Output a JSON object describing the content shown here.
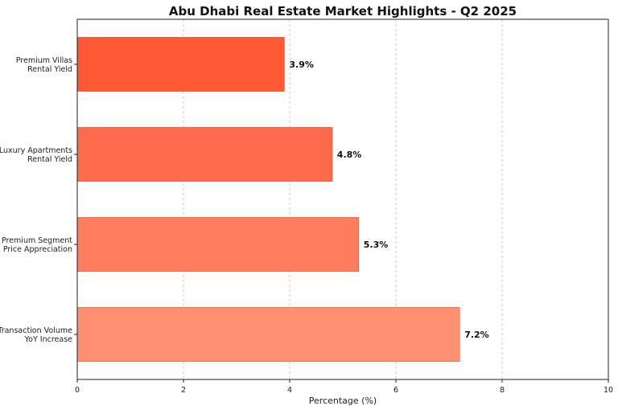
{
  "chart_data": {
    "type": "bar",
    "orientation": "horizontal",
    "title": "Abu Dhabi Real Estate Market Highlights - Q2 2025",
    "xlabel": "Percentage (%)",
    "ylabel": "",
    "xlim": [
      0,
      10
    ],
    "xticks": [
      0,
      2,
      4,
      6,
      8,
      10
    ],
    "grid": "x-dashed",
    "categories": [
      [
        "Premium Villas",
        "Rental Yield"
      ],
      [
        "Luxury Apartments",
        "Rental Yield"
      ],
      [
        "Premium Segment",
        "Price Appreciation"
      ],
      [
        "Transaction Volume",
        "YoY Increase"
      ]
    ],
    "values": [
      3.9,
      4.8,
      5.3,
      7.2
    ],
    "value_labels": [
      "3.9%",
      "4.8%",
      "5.3%",
      "7.2%"
    ],
    "colors": [
      "#ff5733",
      "#ff6b4a",
      "#ff7c5c",
      "#ff8f70"
    ]
  }
}
